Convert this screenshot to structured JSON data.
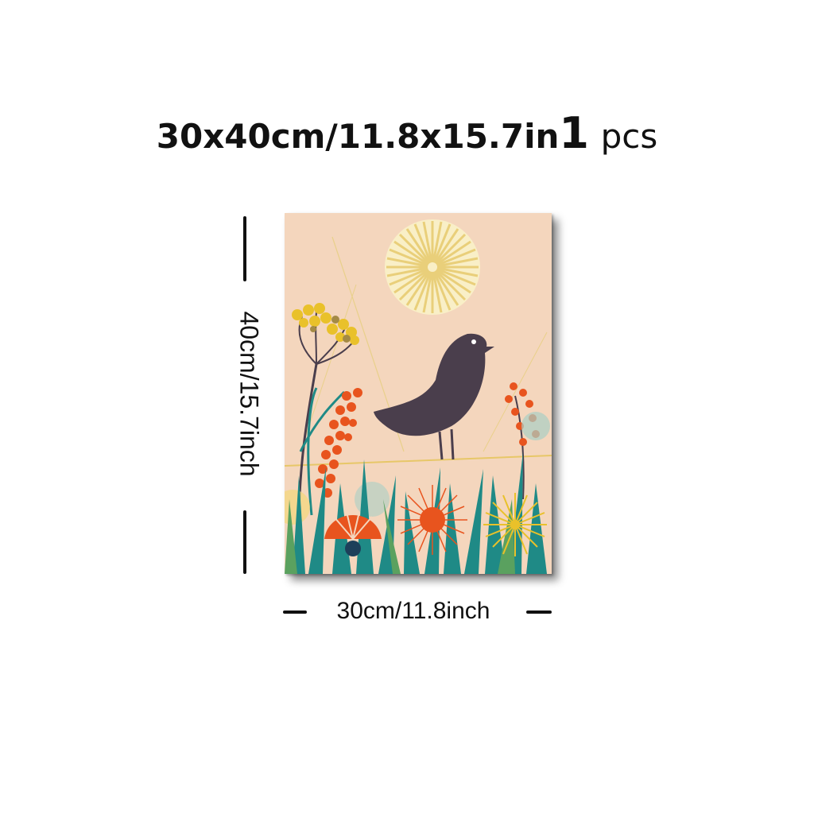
{
  "title": {
    "size_text": "30x40cm/11.8x15.7in",
    "quantity": "1",
    "unit": "pcs"
  },
  "dimensions": {
    "height_label": "40cm/15.7inch",
    "width_label": "30cm/11.8inch"
  },
  "artwork": {
    "background_color": "#f4d6bd",
    "bird_color": "#4a3e4c",
    "accent_orange": "#e8541e",
    "accent_yellow": "#e9c12a",
    "accent_teal": "#1f8a86"
  }
}
